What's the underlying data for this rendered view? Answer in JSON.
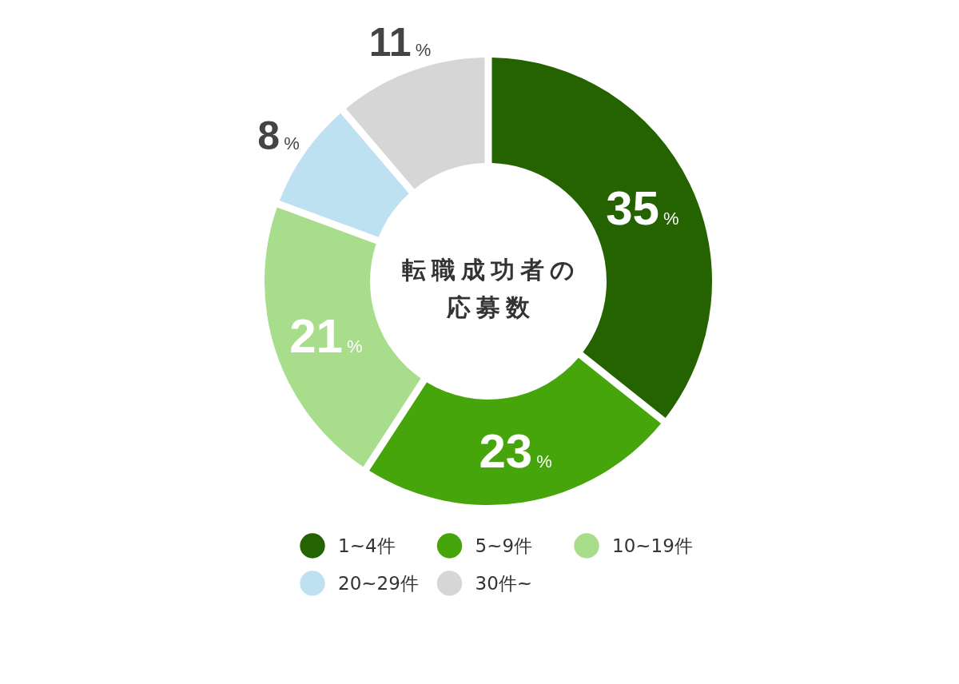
{
  "chart_data": {
    "type": "donut",
    "title": "転職成功者の応募数",
    "categories": [
      "1~4件",
      "5~9件",
      "10~19件",
      "20~29件",
      "30件~"
    ],
    "values": [
      35,
      23,
      21,
      8,
      11
    ],
    "colors": [
      "#256300",
      "#46a50b",
      "#a8dd8c",
      "#bde1f0",
      "#d6d6d6"
    ],
    "value_labels": [
      "35%",
      "23%",
      "21%",
      "8%",
      "11%"
    ],
    "legend": "bottom"
  }
}
